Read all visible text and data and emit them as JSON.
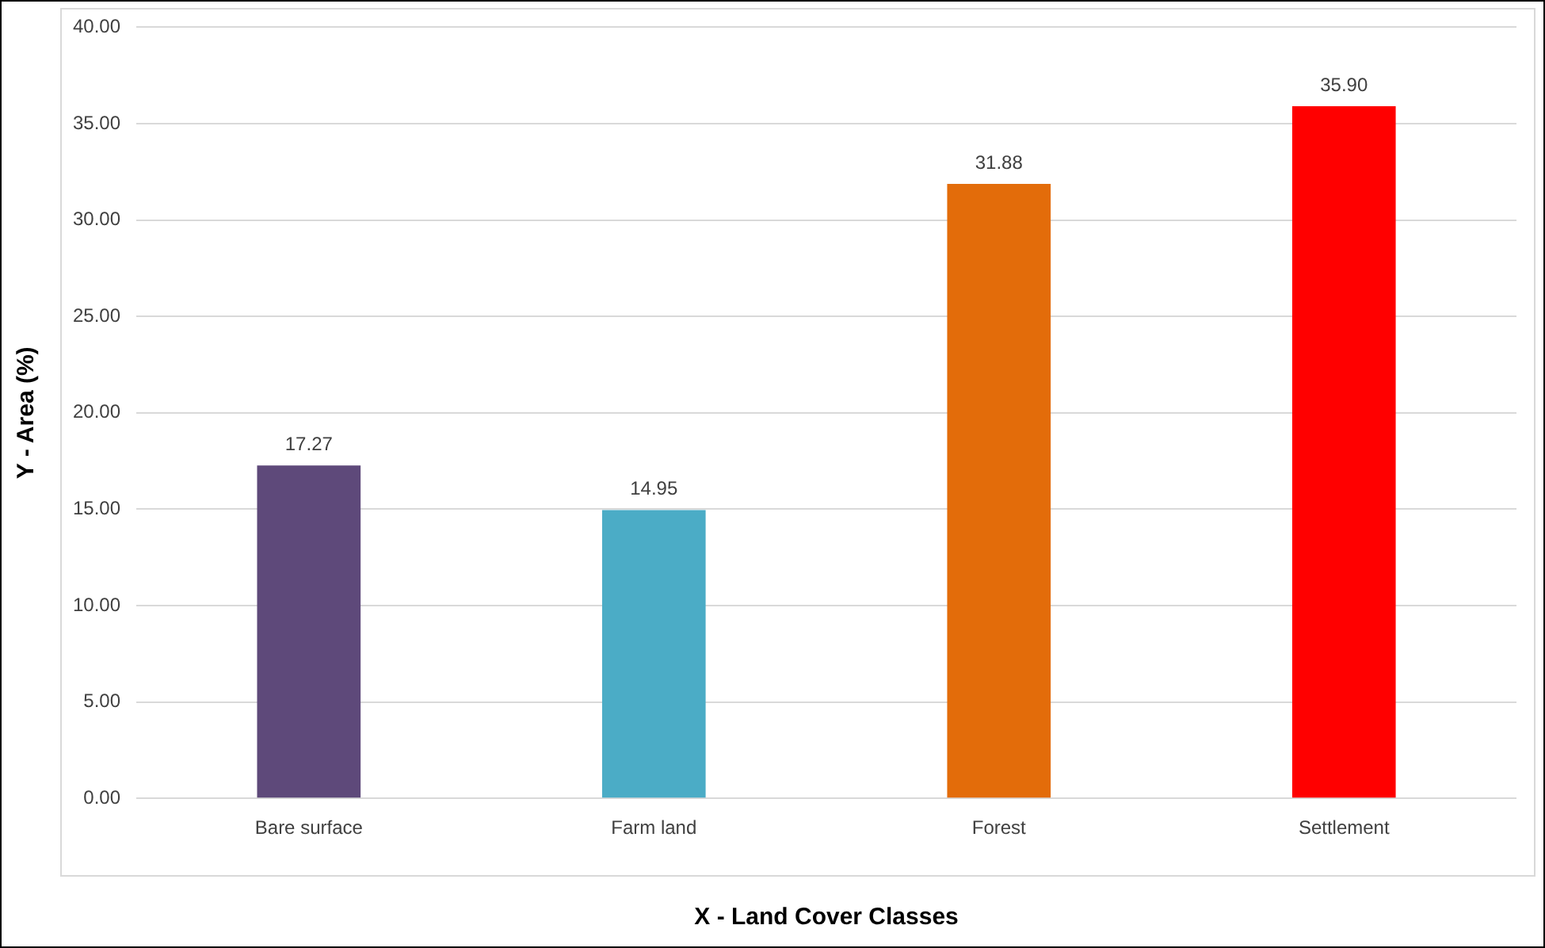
{
  "chart_data": {
    "type": "bar",
    "xlabel": "X - Land Cover Classes",
    "ylabel": "Y - Area (%)",
    "categories": [
      "Bare surface",
      "Farm land",
      "Forest",
      "Settlement"
    ],
    "values": [
      17.27,
      14.95,
      31.88,
      35.9
    ],
    "colors": [
      "#5e497a",
      "#4bacc6",
      "#e36c0a",
      "#ff0000"
    ],
    "ylim": [
      0,
      40
    ],
    "yticks": [
      {
        "value": 0,
        "label": "0.00"
      },
      {
        "value": 5,
        "label": "5.00"
      },
      {
        "value": 10,
        "label": "10.00"
      },
      {
        "value": 15,
        "label": "15.00"
      },
      {
        "value": 20,
        "label": "20.00"
      },
      {
        "value": 25,
        "label": "25.00"
      },
      {
        "value": 30,
        "label": "30.00"
      },
      {
        "value": 35,
        "label": "35.00"
      },
      {
        "value": 40,
        "label": "40.00"
      }
    ],
    "value_labels": [
      "17.27",
      "14.95",
      "31.88",
      "35.90"
    ],
    "grid": "y"
  }
}
